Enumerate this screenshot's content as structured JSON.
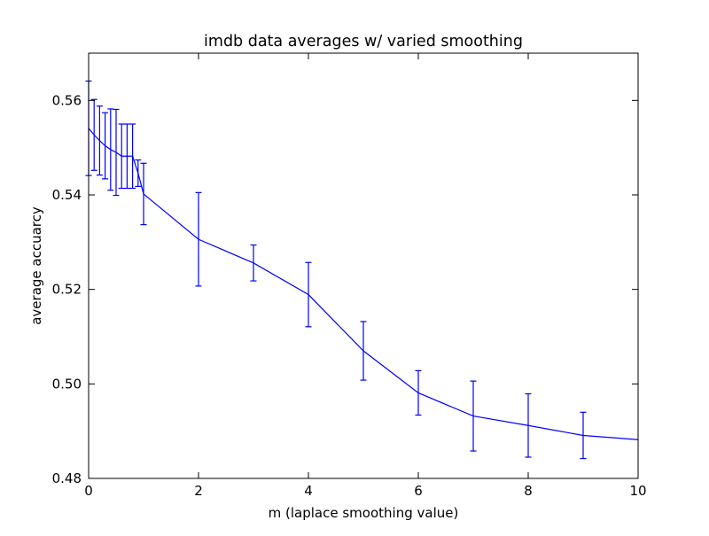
{
  "chart_data": {
    "type": "line",
    "title": "imdb data averages w/ varied smoothing",
    "xlabel": "m (laplace smoothing value)",
    "ylabel": "average accuarcy",
    "xlim": [
      0,
      10
    ],
    "ylim": [
      0.48,
      0.57
    ],
    "xticks": [
      0,
      2,
      4,
      6,
      8,
      10
    ],
    "xtick_labels": [
      "0",
      "2",
      "4",
      "6",
      "8",
      "10"
    ],
    "yticks": [
      0.48,
      0.5,
      0.52,
      0.54,
      0.56
    ],
    "ytick_labels": [
      "0.48",
      "0.50",
      "0.52",
      "0.54",
      "0.56"
    ],
    "grid": false,
    "series": [
      {
        "color": "#0000ff",
        "x": [
          0.0,
          0.1,
          0.2,
          0.3,
          0.4,
          0.5,
          0.6,
          0.7,
          0.8,
          0.9,
          1.0,
          2.0,
          3.0,
          4.0,
          5.0,
          6.0,
          7.0,
          8.0,
          9.0,
          10.0
        ],
        "y": [
          0.5541,
          0.5527,
          0.5515,
          0.5504,
          0.5496,
          0.549,
          0.5482,
          0.5482,
          0.5482,
          0.5446,
          0.5402,
          0.5306,
          0.5256,
          0.5189,
          0.507,
          0.4981,
          0.4932,
          0.4912,
          0.4891,
          0.4882
        ],
        "err": [
          0.01,
          0.0075,
          0.0073,
          0.007,
          0.0086,
          0.0091,
          0.0068,
          0.0068,
          0.0068,
          0.0028,
          0.0065,
          0.0099,
          0.0038,
          0.0068,
          0.0062,
          0.0047,
          0.0074,
          0.0067,
          0.0049,
          0.0
        ]
      }
    ]
  }
}
